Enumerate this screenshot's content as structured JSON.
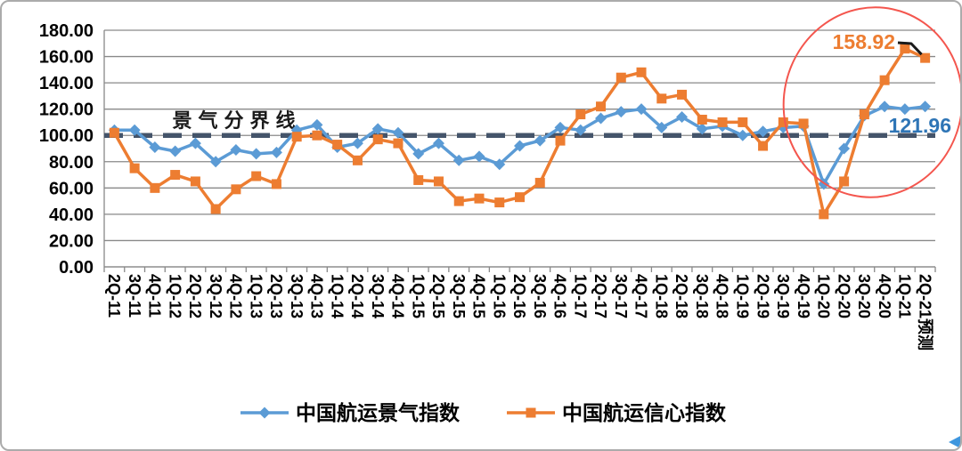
{
  "chart_data": {
    "type": "line",
    "title": "",
    "xlabel": "",
    "ylabel": "",
    "ylim": [
      0,
      180
    ],
    "ytick_step": 20,
    "ytick_labels": [
      "0.00",
      "20.00",
      "40.00",
      "60.00",
      "80.00",
      "100.00",
      "120.00",
      "140.00",
      "160.00",
      "180.00"
    ],
    "grid": "horizontal",
    "legend_position": "bottom",
    "categories": [
      "2Q-11",
      "3Q-11",
      "4Q-11",
      "1Q-12",
      "2Q-12",
      "3Q-12",
      "4Q-12",
      "1Q-13",
      "2Q-13",
      "3Q-13",
      "4Q-13",
      "1Q-14",
      "2Q-14",
      "3Q-14",
      "4Q-14",
      "1Q-15",
      "2Q-15",
      "3Q-15",
      "4Q-15",
      "1Q-16",
      "2Q-16",
      "3Q-16",
      "4Q-16",
      "1Q-17",
      "2Q-17",
      "3Q-17",
      "4Q-17",
      "1Q-18",
      "2Q-18",
      "3Q-18",
      "4Q-18",
      "1Q-19",
      "2Q-19",
      "3Q-19",
      "4Q-19",
      "1Q-20",
      "2Q-20",
      "3Q-20",
      "4Q-20",
      "1Q-21",
      "2Q-21预测"
    ],
    "series": [
      {
        "id": "prosperity-index",
        "name": "中国航运景气指数",
        "color": "#5B9BD5",
        "marker": "diamond",
        "values": [
          104,
          104,
          91,
          88,
          94,
          80,
          89,
          86,
          87,
          104,
          108,
          91,
          94,
          105,
          102,
          86,
          94,
          81,
          84,
          78,
          92,
          96,
          106,
          104,
          113,
          118,
          120,
          106,
          114,
          105,
          107,
          100,
          103,
          106,
          107,
          63,
          90,
          115,
          122,
          120,
          121.96
        ]
      },
      {
        "id": "confidence-index",
        "name": "中国航运信心指数",
        "color": "#ED7D31",
        "marker": "square",
        "values": [
          102,
          75,
          60,
          70,
          65,
          44,
          59,
          69,
          63,
          99,
          100,
          93,
          81,
          97,
          94,
          66,
          65,
          50,
          52,
          49,
          53,
          64,
          96,
          116,
          122,
          144,
          148,
          128,
          131,
          112,
          110,
          110,
          92,
          110,
          109,
          40,
          65,
          116,
          142,
          166,
          158.92
        ]
      }
    ],
    "threshold_line": {
      "value": 100,
      "label": "景气分界线",
      "color": "#44546A",
      "style": "dashed"
    },
    "annotations": [
      {
        "text": "158.92",
        "series": "中国航运信心指数",
        "category": "2Q-21预测",
        "value": 158.92,
        "color": "#ED7D31"
      },
      {
        "text": "121.96",
        "series": "中国航运景气指数",
        "category": "2Q-21预测",
        "value": 121.96,
        "color": "#2E75B6"
      }
    ],
    "highlight_ellipse": {
      "from_category": "2Q-20",
      "to_category": "2Q-21预测",
      "color": "#F4564E"
    },
    "colors": {
      "grid": "#898989",
      "axis": "#898989",
      "tick_text": "#000000",
      "corner_triangle": "#3E96DE"
    }
  }
}
